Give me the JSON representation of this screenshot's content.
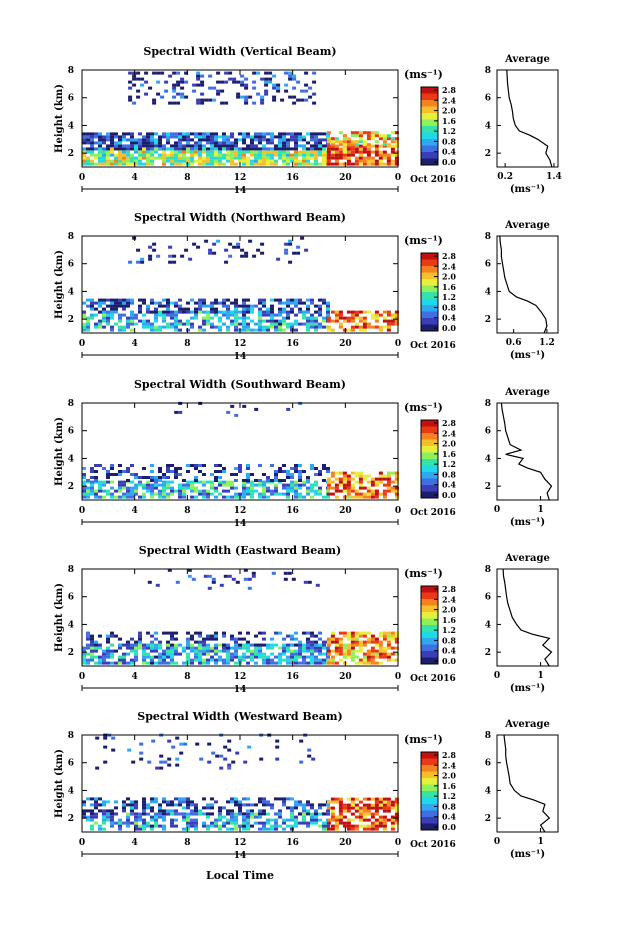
{
  "colors": {
    "scale": [
      "#1b1f6e",
      "#3b3fb7",
      "#3f6fe0",
      "#2fa8f2",
      "#1fd8e8",
      "#35e3a8",
      "#8ef05a",
      "#e6f03a",
      "#f7c02a",
      "#f5821e",
      "#e83a14",
      "#c21010"
    ]
  },
  "shared": {
    "ylabel": "Height (km)",
    "unit_label": "(ms⁻¹)",
    "date_label": "Oct 2016",
    "day_label": "14",
    "avg_title": "Average",
    "xlabel": "Local Time"
  },
  "chart_data": [
    {
      "type": "heatmap",
      "title": "Spectral Width (Vertical Beam)",
      "x_ticks": [
        "0",
        "4",
        "8",
        "12",
        "16",
        "20",
        "0"
      ],
      "xlim": [
        0,
        24
      ],
      "y_ticks": [
        "2",
        "4",
        "6",
        "8"
      ],
      "ylim": [
        1,
        8
      ],
      "colorbar_ticks": [
        "2.8",
        "2.4",
        "2.0",
        "1.6",
        "1.2",
        "0.8",
        "0.4",
        "0.0"
      ],
      "colorbar_range": [
        0.0,
        2.8
      ],
      "average": {
        "x_ticks": [
          "0.2",
          "1.4"
        ],
        "xlim": [
          0.0,
          1.5
        ],
        "y_ticks": [
          "2",
          "4",
          "6",
          "8"
        ],
        "ylim": [
          1,
          8
        ],
        "heights": [
          1.0,
          1.5,
          2.0,
          2.5,
          3.0,
          3.3,
          3.6,
          4.0,
          4.5,
          5.0,
          5.5,
          6.0,
          6.5,
          7.0,
          7.5,
          8.0
        ],
        "values": [
          1.35,
          1.3,
          1.2,
          1.25,
          1.0,
          0.8,
          0.55,
          0.45,
          0.4,
          0.38,
          0.35,
          0.3,
          0.28,
          0.26,
          0.25,
          0.24
        ]
      },
      "blocks": [
        {
          "t0": 0.0,
          "t1": 18.6,
          "h0": 1.1,
          "h1": 2.2,
          "level": 0.55,
          "density": 0.85
        },
        {
          "t0": 0.0,
          "t1": 18.6,
          "h0": 2.2,
          "h1": 3.3,
          "level": 0.15,
          "density": 0.8
        },
        {
          "t0": 18.6,
          "t1": 24.0,
          "h0": 1.1,
          "h1": 2.5,
          "level": 0.85,
          "density": 0.85
        },
        {
          "t0": 18.6,
          "t1": 24.0,
          "h0": 2.5,
          "h1": 3.4,
          "level": 0.7,
          "density": 0.7
        },
        {
          "t0": 3.5,
          "t1": 17.5,
          "h0": 5.5,
          "h1": 7.8,
          "level": 0.08,
          "density": 0.3
        }
      ]
    },
    {
      "type": "heatmap",
      "title": "Spectral Width (Northward Beam)",
      "x_ticks": [
        "0",
        "4",
        "8",
        "12",
        "16",
        "20",
        "0"
      ],
      "xlim": [
        0,
        24
      ],
      "y_ticks": [
        "2",
        "4",
        "6",
        "8"
      ],
      "ylim": [
        1,
        8
      ],
      "colorbar_ticks": [
        "2.8",
        "2.4",
        "2.0",
        "1.6",
        "1.2",
        "0.8",
        "0.4",
        "0.0"
      ],
      "colorbar_range": [
        0.0,
        2.8
      ],
      "average": {
        "x_ticks": [
          "0.6",
          "1.2"
        ],
        "xlim": [
          0.3,
          1.4
        ],
        "y_ticks": [
          "2",
          "4",
          "6",
          "8"
        ],
        "ylim": [
          1,
          8
        ],
        "heights": [
          1.0,
          1.5,
          2.0,
          2.5,
          3.0,
          3.3,
          3.6,
          4.0,
          4.5,
          5.0,
          5.5,
          6.0,
          6.5,
          7.0,
          7.5,
          8.0
        ],
        "values": [
          1.15,
          1.2,
          1.18,
          1.1,
          1.0,
          0.85,
          0.65,
          0.52,
          0.48,
          0.44,
          0.42,
          0.4,
          0.38,
          0.38,
          0.36,
          0.35
        ]
      },
      "blocks": [
        {
          "t0": 0.0,
          "t1": 18.6,
          "h0": 1.1,
          "h1": 2.4,
          "level": 0.3,
          "density": 0.6
        },
        {
          "t0": 0.0,
          "t1": 18.6,
          "h0": 2.4,
          "h1": 3.3,
          "level": 0.12,
          "density": 0.6
        },
        {
          "t0": 18.6,
          "t1": 24.0,
          "h0": 1.1,
          "h1": 2.6,
          "level": 0.8,
          "density": 0.6
        },
        {
          "t0": 3.5,
          "t1": 17.0,
          "h0": 6.0,
          "h1": 7.8,
          "level": 0.05,
          "density": 0.12
        }
      ]
    },
    {
      "type": "heatmap",
      "title": "Spectral Width (Southward Beam)",
      "x_ticks": [
        "0",
        "4",
        "8",
        "12",
        "16",
        "20",
        "0"
      ],
      "xlim": [
        0,
        24
      ],
      "y_ticks": [
        "2",
        "4",
        "6",
        "8"
      ],
      "ylim": [
        1,
        8
      ],
      "colorbar_ticks": [
        "2.8",
        "2.4",
        "2.0",
        "1.6",
        "1.2",
        "0.8",
        "0.4",
        "0.0"
      ],
      "colorbar_range": [
        0.0,
        2.8
      ],
      "average": {
        "x_ticks": [
          "0",
          "1"
        ],
        "xlim": [
          0.0,
          1.4
        ],
        "y_ticks": [
          "2",
          "4",
          "6",
          "8"
        ],
        "ylim": [
          1,
          8
        ],
        "heights": [
          1.0,
          1.5,
          2.0,
          2.5,
          3.0,
          3.3,
          3.6,
          4.0,
          4.3,
          4.6,
          5.0,
          5.5,
          6.0,
          6.5,
          7.0,
          7.5,
          8.0
        ],
        "values": [
          1.2,
          1.15,
          1.25,
          1.1,
          1.0,
          0.7,
          0.5,
          0.6,
          0.2,
          0.55,
          0.3,
          0.25,
          0.2,
          0.18,
          0.15,
          0.12,
          0.1
        ]
      },
      "blocks": [
        {
          "t0": 0.0,
          "t1": 18.6,
          "h0": 1.1,
          "h1": 2.3,
          "level": 0.35,
          "density": 0.65
        },
        {
          "t0": 0.0,
          "t1": 18.6,
          "h0": 2.3,
          "h1": 3.4,
          "level": 0.1,
          "density": 0.35
        },
        {
          "t0": 18.6,
          "t1": 24.0,
          "h0": 1.1,
          "h1": 3.0,
          "level": 0.8,
          "density": 0.6
        },
        {
          "t0": 7.0,
          "t1": 17.0,
          "h0": 7.0,
          "h1": 7.9,
          "level": 0.05,
          "density": 0.12
        }
      ]
    },
    {
      "type": "heatmap",
      "title": "Spectral Width (Eastward Beam)",
      "x_ticks": [
        "0",
        "4",
        "8",
        "12",
        "16",
        "20",
        "0"
      ],
      "xlim": [
        0,
        24
      ],
      "y_ticks": [
        "2",
        "4",
        "6",
        "8"
      ],
      "ylim": [
        1,
        8
      ],
      "colorbar_ticks": [
        "2.8",
        "2.4",
        "2.0",
        "1.6",
        "1.2",
        "0.8",
        "0.4",
        "0.0"
      ],
      "colorbar_range": [
        0.0,
        2.8
      ],
      "average": {
        "x_ticks": [
          "0",
          "1"
        ],
        "xlim": [
          0.0,
          1.4
        ],
        "y_ticks": [
          "2",
          "4",
          "6",
          "8"
        ],
        "ylim": [
          1,
          8
        ],
        "heights": [
          1.0,
          1.5,
          2.0,
          2.5,
          3.0,
          3.3,
          3.6,
          4.0,
          4.5,
          5.0,
          5.5,
          6.0,
          6.5,
          7.0,
          7.5,
          8.0
        ],
        "values": [
          1.2,
          1.1,
          1.25,
          1.05,
          1.2,
          0.8,
          0.55,
          0.45,
          0.35,
          0.3,
          0.25,
          0.22,
          0.2,
          0.18,
          0.15,
          0.14
        ]
      },
      "blocks": [
        {
          "t0": 0.0,
          "t1": 18.6,
          "h0": 1.1,
          "h1": 2.4,
          "level": 0.3,
          "density": 0.7
        },
        {
          "t0": 0.0,
          "t1": 18.6,
          "h0": 2.4,
          "h1": 3.4,
          "level": 0.12,
          "density": 0.35
        },
        {
          "t0": 18.6,
          "t1": 24.0,
          "h0": 1.1,
          "h1": 3.3,
          "level": 0.75,
          "density": 0.7
        },
        {
          "t0": 5.0,
          "t1": 18.0,
          "h0": 6.5,
          "h1": 7.9,
          "level": 0.05,
          "density": 0.15
        }
      ]
    },
    {
      "type": "heatmap",
      "title": "Spectral Width (Westward Beam)",
      "x_ticks": [
        "0",
        "4",
        "8",
        "12",
        "16",
        "20",
        "0"
      ],
      "xlim": [
        0,
        24
      ],
      "y_ticks": [
        "2",
        "4",
        "6",
        "8"
      ],
      "ylim": [
        1,
        8
      ],
      "colorbar_ticks": [
        "2.8",
        "2.4",
        "2.0",
        "1.6",
        "1.2",
        "0.8",
        "0.4",
        "0.0"
      ],
      "colorbar_range": [
        0.0,
        2.8
      ],
      "average": {
        "x_ticks": [
          "0",
          "1"
        ],
        "xlim": [
          0.0,
          1.4
        ],
        "y_ticks": [
          "2",
          "4",
          "6",
          "8"
        ],
        "ylim": [
          1,
          8
        ],
        "heights": [
          1.0,
          1.5,
          2.0,
          2.5,
          3.0,
          3.3,
          3.6,
          4.0,
          4.5,
          5.0,
          5.5,
          6.0,
          6.5,
          7.0,
          7.5,
          8.0
        ],
        "values": [
          1.1,
          1.0,
          1.2,
          1.05,
          1.1,
          0.85,
          0.55,
          0.4,
          0.3,
          0.28,
          0.25,
          0.22,
          0.2,
          0.2,
          0.18,
          0.16
        ]
      },
      "blocks": [
        {
          "t0": 0.0,
          "t1": 18.6,
          "h0": 1.1,
          "h1": 2.2,
          "level": 0.3,
          "density": 0.6
        },
        {
          "t0": 0.0,
          "t1": 18.6,
          "h0": 2.2,
          "h1": 3.3,
          "level": 0.12,
          "density": 0.45
        },
        {
          "t0": 18.6,
          "t1": 24.0,
          "h0": 1.1,
          "h1": 3.3,
          "level": 0.85,
          "density": 0.7
        },
        {
          "t0": 1.0,
          "t1": 17.5,
          "h0": 5.5,
          "h1": 7.9,
          "level": 0.05,
          "density": 0.1
        }
      ]
    }
  ]
}
